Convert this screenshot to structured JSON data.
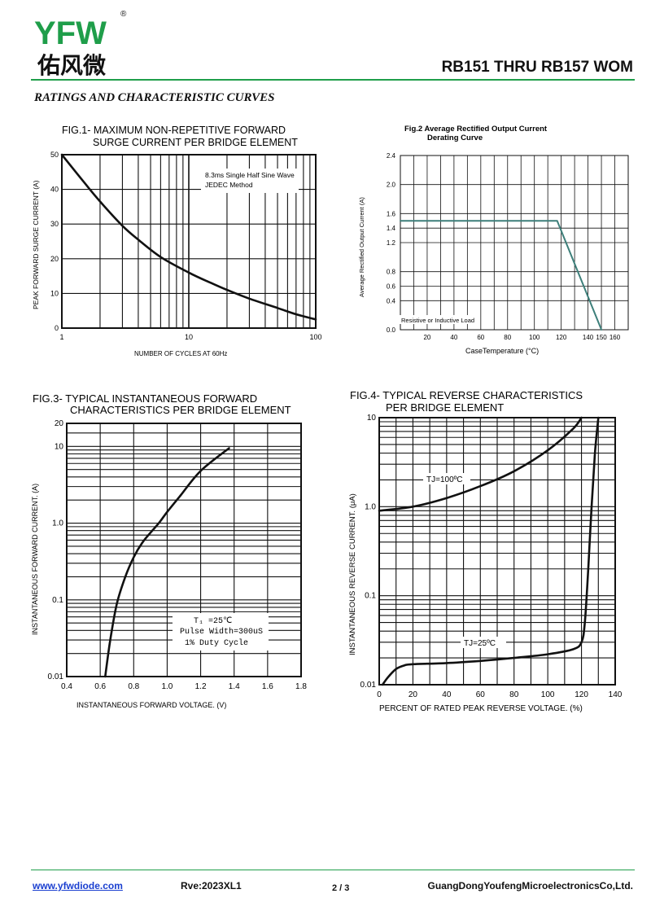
{
  "header": {
    "logo_latin": "YFW",
    "logo_cjk": "佑风微",
    "registered_mark": "®",
    "doc_title": "RB151 THRU RB157  WOM",
    "section_title": "RATINGS AND CHARACTERISTIC CURVES",
    "brand_green": "#1f9e4a",
    "brand_orange": "#f29a1f"
  },
  "chart_data": [
    {
      "id": "fig1",
      "type": "line",
      "title": "FIG.1- MAXIMUM NON-REPETITIVE FORWARD",
      "subtitle": "SURGE CURRENT PER BRIDGE ELEMENT",
      "xlabel": "NUMBER OF CYCLES AT 60Hz",
      "ylabel": "PEAK FORWARD SURGE CURRENT (A)",
      "xscale": "log",
      "xlim": [
        1,
        100
      ],
      "ylim": [
        0,
        50
      ],
      "xticks": [
        1,
        10,
        100
      ],
      "xtick_labels": [
        "1",
        "10",
        "100"
      ],
      "yticks": [
        0,
        10,
        20,
        30,
        40,
        50
      ],
      "ytick_labels": [
        "0",
        "10",
        "20",
        "30",
        "40",
        "50"
      ],
      "annotations": [
        "8.3ms Single Half Sine Wave",
        "JEDEC Method"
      ],
      "grid": true,
      "series": [
        {
          "x": [
            1,
            1.5,
            2,
            3,
            4,
            6,
            10,
            15,
            20,
            30,
            50,
            70,
            100
          ],
          "y": [
            50,
            42,
            36.5,
            29.5,
            25.5,
            20.5,
            16,
            13,
            11,
            8.5,
            5.8,
            4,
            2.5
          ]
        }
      ]
    },
    {
      "id": "fig2",
      "type": "line",
      "title": "Fig.2  Average Rectified Output Current",
      "subtitle": "Derating Curve",
      "xlabel": "CaseTemperature (°C)",
      "ylabel": "Average Rectified Output Current (A)",
      "xlim": [
        0,
        170
      ],
      "ylim": [
        0,
        2.4
      ],
      "xticks": [
        20,
        40,
        60,
        80,
        100,
        120,
        140,
        150,
        160
      ],
      "xtick_labels": [
        "20",
        "40",
        "60",
        "80",
        "100",
        "120",
        "140",
        "150",
        "160"
      ],
      "yticks": [
        0.0,
        0.4,
        0.6,
        0.8,
        1.2,
        1.4,
        1.6,
        2.0,
        2.4
      ],
      "ytick_labels": [
        "0.0",
        "0.4",
        "0.6",
        "0.8",
        "1.2",
        "1.4",
        "1.6",
        "2.0",
        "2.4"
      ],
      "annotations": [
        "Resistive or Inductive Load"
      ],
      "grid": true,
      "line_color": "#3d7f7a",
      "series": [
        {
          "x": [
            0,
            117,
            150
          ],
          "y": [
            1.5,
            1.5,
            0
          ]
        }
      ]
    },
    {
      "id": "fig3",
      "type": "line",
      "title": "FIG.3- TYPICAL INSTANTANEOUS FORWARD",
      "subtitle": "CHARACTERISTICS PER BRIDGE ELEMENT",
      "xlabel": "INSTANTANEOUS FORWARD VOLTAGE. (V)",
      "ylabel": "INSTANTANEOUS FORWARD CURRENT. (A)",
      "yscale": "log",
      "xlim": [
        0.4,
        1.8
      ],
      "ylim": [
        0.01,
        20
      ],
      "xticks": [
        0.4,
        0.6,
        0.8,
        1.0,
        1.2,
        1.4,
        1.6,
        1.8
      ],
      "xtick_labels": [
        "0.4",
        "0.6",
        "0.8",
        "1.0",
        "1.2",
        "1.4",
        "1.6",
        "1.8"
      ],
      "yticks": [
        0.01,
        0.1,
        1.0,
        10,
        20
      ],
      "ytick_labels": [
        "0.01",
        "0.1",
        "1.0",
        "10",
        "20"
      ],
      "annotations": [
        "T₁ =25℃",
        "Pulse Width=300uS",
        "1% Duty Cycle"
      ],
      "grid": true,
      "series": [
        {
          "x": [
            0.63,
            0.66,
            0.7,
            0.75,
            0.8,
            0.85,
            0.9,
            0.95,
            1.0,
            1.08,
            1.2,
            1.37
          ],
          "y": [
            0.01,
            0.03,
            0.09,
            0.2,
            0.36,
            0.55,
            0.75,
            1.0,
            1.4,
            2.3,
            4.8,
            9.5
          ]
        }
      ]
    },
    {
      "id": "fig4",
      "type": "line",
      "title": "FIG.4- TYPICAL REVERSE CHARACTERISTICS",
      "subtitle": "PER BRIDGE ELEMENT",
      "xlabel": "PERCENT OF RATED PEAK REVERSE VOLTAGE. (%)",
      "ylabel": "INSTANTANEOUS REVERSE CURRENT. (μA)",
      "yscale": "log",
      "xlim": [
        0,
        140
      ],
      "ylim": [
        0.01,
        10
      ],
      "xticks": [
        0,
        20,
        40,
        60,
        80,
        100,
        120,
        140
      ],
      "xtick_labels": [
        "0",
        "20",
        "40",
        "60",
        "80",
        "100",
        "120",
        "140"
      ],
      "yticks": [
        0.01,
        0.1,
        1.0,
        10
      ],
      "ytick_labels": [
        "0.01",
        "0.1",
        "1.0",
        "10"
      ],
      "grid": true,
      "series": [
        {
          "name": "TJ=100ºC",
          "x": [
            0,
            20,
            40,
            60,
            80,
            100,
            115,
            120
          ],
          "y": [
            0.9,
            1.0,
            1.25,
            1.7,
            2.5,
            4.3,
            7.5,
            10
          ]
        },
        {
          "name": "TJ=25ºC",
          "x": [
            2,
            5,
            10,
            15,
            20,
            40,
            60,
            80,
            100,
            115,
            120,
            122,
            124,
            126,
            128,
            130
          ],
          "y": [
            0.01,
            0.012,
            0.015,
            0.0165,
            0.017,
            0.0175,
            0.0185,
            0.02,
            0.022,
            0.025,
            0.03,
            0.05,
            0.2,
            1,
            4,
            10
          ]
        }
      ]
    }
  ],
  "footer": {
    "website": "www.yfwdiode.com",
    "revision": "Rve:2023XL1",
    "page": "2 / 3",
    "company": "GuangDongYoufengMicroelectronicsCo,Ltd."
  }
}
